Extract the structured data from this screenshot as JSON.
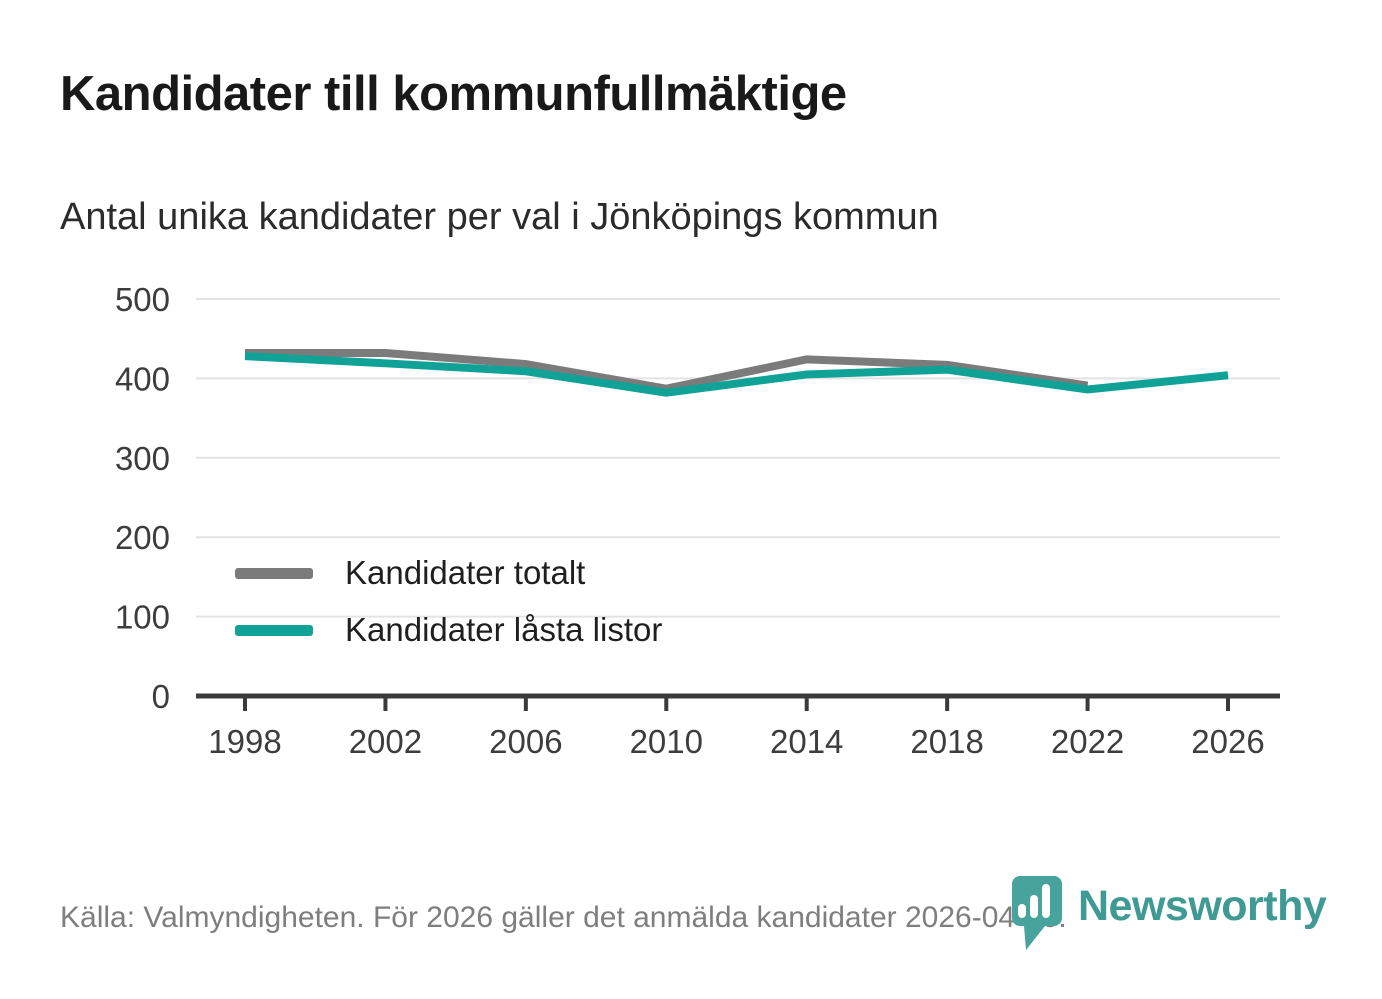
{
  "title": "Kandidater till kommunfullmäktige",
  "subtitle": "Antal unika kandidater per val i Jönköpings kommun",
  "footer": {
    "source_note": "Källa: Valmyndigheten. För 2026 gäller det anmälda kandidater 2026-04-10."
  },
  "branding": {
    "name": "Newsworthy",
    "icon": "newsworthy-pin-bar-chart-badge",
    "badge_color": "#47a39c",
    "text_color": "#3e9a93"
  },
  "colors": {
    "series_total": "#7b7b7b",
    "series_locked": "#10a296",
    "grid": "#e3e3e3",
    "axis": "#3b3b3b",
    "tick_label": "#3d3d3d",
    "title_text": "#191919",
    "subtitle_text": "#2b2b2b",
    "legend_text": "#1f1f1f",
    "footer_text": "#7e7e7e",
    "background": "#ffffff"
  },
  "chart_data": {
    "type": "line",
    "title": "Kandidater till kommunfullmäktige",
    "subtitle": "Antal unika kandidater per val i Jönköpings kommun",
    "x": [
      1998,
      2002,
      2006,
      2010,
      2014,
      2018,
      2022,
      2026
    ],
    "xlabel": "",
    "ylabel": "",
    "ylim": [
      0,
      500
    ],
    "yticks": [
      0,
      100,
      200,
      300,
      400,
      500
    ],
    "grid": "horizontal",
    "legend_position": "inside-bottom-left",
    "series": [
      {
        "name": "Kandidater totalt",
        "color": "#7b7b7b",
        "values": [
          432,
          432,
          418,
          387,
          424,
          417,
          391,
          null
        ]
      },
      {
        "name": "Kandidater låsta listor",
        "color": "#10a296",
        "values": [
          428,
          419,
          409,
          382,
          405,
          411,
          386,
          404
        ]
      }
    ]
  }
}
